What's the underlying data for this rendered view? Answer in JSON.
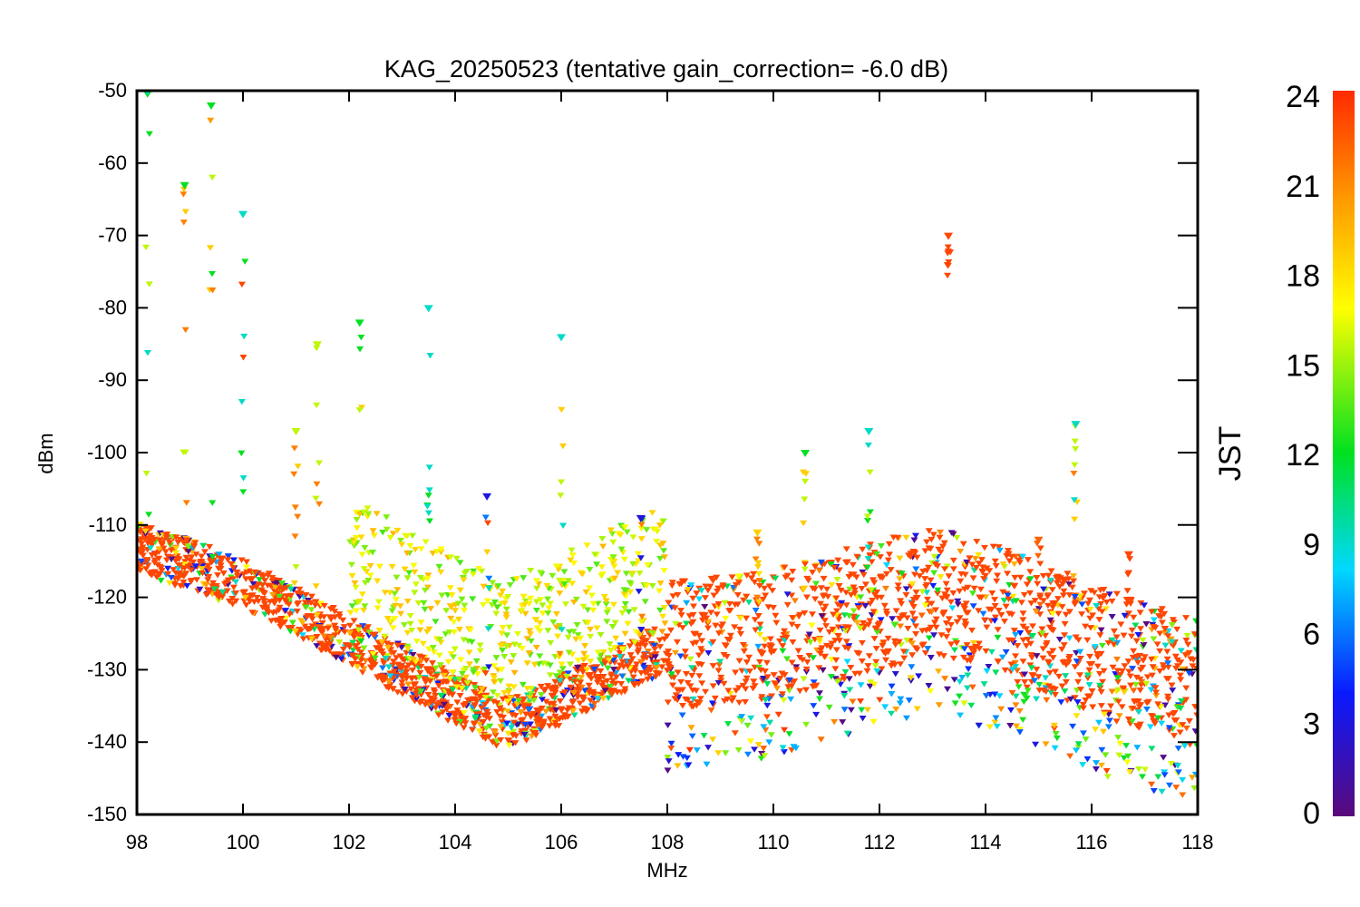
{
  "chart_data": {
    "type": "scatter",
    "title": "KAG_20250523 (tentative gain_correction= -6.0 dB)",
    "xlabel": "MHz",
    "ylabel": "dBm",
    "xlim": [
      98,
      118
    ],
    "ylim": [
      -150,
      -50
    ],
    "xticks": [
      "98",
      "100",
      "102",
      "104",
      "106",
      "108",
      "110",
      "112",
      "114",
      "116",
      "118"
    ],
    "yticks": [
      "-50",
      "-60",
      "-70",
      "-80",
      "-90",
      "-100",
      "-110",
      "-120",
      "-130",
      "-140",
      "-150"
    ],
    "grid": false,
    "marker": "triangle-down",
    "color_scale": {
      "label": "JST",
      "range": [
        0,
        24
      ],
      "ticks": [
        "24",
        "21",
        "18",
        "15",
        "12",
        "9",
        "6",
        "3",
        "0"
      ],
      "colors": [
        "#5a0a7a",
        "#0a1aff",
        "#00d8ff",
        "#00e020",
        "#ffff00",
        "#ff9a00",
        "#ff2a00"
      ]
    },
    "noise_floor": [
      {
        "x": 98,
        "y": -113
      },
      {
        "x": 100,
        "y": -118
      },
      {
        "x": 102,
        "y": -126
      },
      {
        "x": 104,
        "y": -134
      },
      {
        "x": 104.8,
        "y": -137
      },
      {
        "x": 105.2,
        "y": -137
      },
      {
        "x": 106,
        "y": -134
      },
      {
        "x": 107.9,
        "y": -127
      },
      {
        "x": 110,
        "y": -125
      },
      {
        "x": 112,
        "y": -121
      },
      {
        "x": 113,
        "y": -119
      },
      {
        "x": 114,
        "y": -121
      },
      {
        "x": 116,
        "y": -127
      },
      {
        "x": 118,
        "y": -132
      }
    ],
    "signals": [
      {
        "freq": 98.2,
        "top": -50,
        "bottom": -112,
        "time_colors": [
          9,
          12,
          15,
          18,
          20
        ]
      },
      {
        "freq": 98.9,
        "top": -63,
        "bottom": -113,
        "time_colors": [
          12,
          15,
          18,
          20,
          21
        ]
      },
      {
        "freq": 99.4,
        "top": -52,
        "bottom": -115,
        "time_colors": [
          12,
          15,
          18,
          20,
          21
        ]
      },
      {
        "freq": 100.0,
        "top": -67,
        "bottom": -112,
        "time_colors": [
          9,
          12,
          15,
          23
        ]
      },
      {
        "freq": 101.0,
        "top": -97,
        "bottom": -122,
        "time_colors": [
          15,
          18,
          21
        ]
      },
      {
        "freq": 101.4,
        "top": -85,
        "bottom": -124,
        "time_colors": [
          15,
          18,
          21
        ]
      },
      {
        "freq": 102.2,
        "top": -82,
        "bottom": -127,
        "time_colors": [
          12,
          15,
          18
        ]
      },
      {
        "freq": 103.5,
        "top": -80,
        "bottom": -124,
        "time_colors": [
          9,
          12
        ]
      },
      {
        "freq": 104.6,
        "top": -106,
        "bottom": -133,
        "time_colors": [
          3,
          6,
          9,
          18,
          23
        ]
      },
      {
        "freq": 106.0,
        "top": -84,
        "bottom": -133,
        "time_colors": [
          9,
          15,
          18,
          21
        ]
      },
      {
        "freq": 107.5,
        "top": -109,
        "bottom": -128,
        "time_colors": [
          3,
          18,
          21
        ]
      },
      {
        "freq": 109.7,
        "top": -111,
        "bottom": -123,
        "time_colors": [
          18,
          21
        ]
      },
      {
        "freq": 110.6,
        "top": -100,
        "bottom": -120,
        "time_colors": [
          12,
          15,
          18
        ]
      },
      {
        "freq": 111.8,
        "top": -97,
        "bottom": -118,
        "time_colors": [
          9,
          12,
          15
        ]
      },
      {
        "freq": 113.3,
        "top": -70,
        "bottom": -76,
        "time_colors": [
          23
        ]
      },
      {
        "freq": 115.0,
        "top": -112,
        "bottom": -123,
        "time_colors": [
          22,
          23
        ]
      },
      {
        "freq": 115.7,
        "top": -96,
        "bottom": -112,
        "time_colors": [
          9,
          15,
          18,
          21
        ]
      },
      {
        "freq": 116.7,
        "top": -114,
        "bottom": -122,
        "time_colors": [
          23
        ]
      }
    ]
  }
}
